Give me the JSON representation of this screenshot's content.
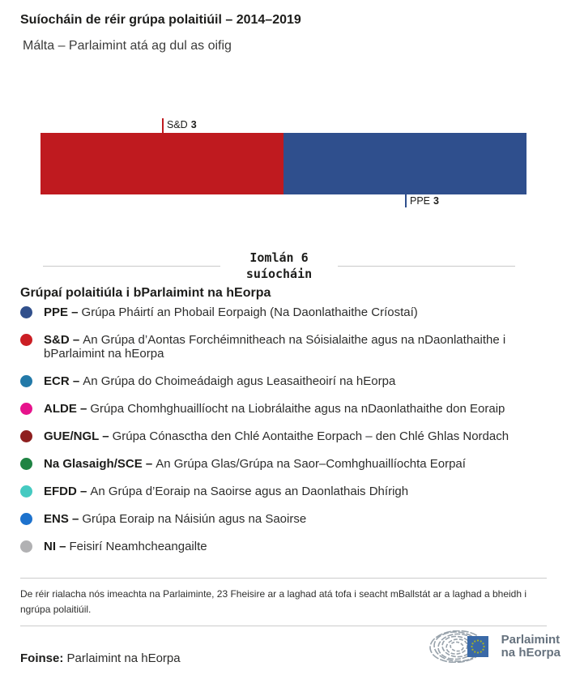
{
  "header": {
    "title": "Suíocháin de réir grúpa polaitiúil – 2014–2019",
    "subtitle": "Málta – Parlaimint atá ag dul as oifig"
  },
  "chart_data": {
    "type": "bar",
    "orientation": "horizontal",
    "stacked": true,
    "title": "Suíocháin de réir grúpa polaitiúil – 2014–2019",
    "subtitle": "Málta – Parlaimint atá ag dul as oifig",
    "total_seats": 6,
    "total_line1": "Iomlán 6",
    "total_line2": "suíocháin",
    "segments": [
      {
        "group": "S&D",
        "seats": 3,
        "color": "#bf1a1f",
        "label_position": "above"
      },
      {
        "group": "PPE",
        "seats": 3,
        "color": "#2f4f8d",
        "label_position": "below"
      }
    ]
  },
  "legend": {
    "title": "Grúpaí polaitiúla i bParlaimint na hEorpa",
    "items": [
      {
        "code": "PPE –",
        "desc": "Grúpa Pháirtí an Phobail Eorpaigh (Na Daonlathaithe Críostaí)",
        "color": "#31508c"
      },
      {
        "code": "S&D –",
        "desc": "An Grúpa d’Aontas Forchéimnitheach na Sóisialaithe agus na nDaonlathaithe i bParlaimint na hEorpa",
        "color": "#cb1e24"
      },
      {
        "code": "ECR –",
        "desc": "An Grúpa do Choimeádaigh agus Leasaitheoirí na hEorpa",
        "color": "#2279a8"
      },
      {
        "code": "ALDE –",
        "desc": "Grúpa Chomhghuaillíocht na Liobrálaithe agus na nDaonlathaithe don Eoraip",
        "color": "#e6138c"
      },
      {
        "code": "GUE/NGL –",
        "desc": "Grúpa Cónasctha den Chlé Aontaithe Eorpach – den Chlé Ghlas Nordach",
        "color": "#8e1f1f"
      },
      {
        "code": "Na Glasaigh/SCE –",
        "desc": "An Grúpa Glas/Grúpa na Saor–Comhghuaillíochta Eorpaí",
        "color": "#1f8343"
      },
      {
        "code": "EFDD –",
        "desc": "An Grúpa d’Eoraip na Saoirse agus an Daonlathais Dhírigh",
        "color": "#45cac1"
      },
      {
        "code": "ENS –",
        "desc": "Grúpa Eoraip na Náisiún agus na Saoirse",
        "color": "#1d72cd"
      },
      {
        "code": "NI –",
        "desc": "Feisirí Neamhcheangailte",
        "color": "#b1b1b3"
      }
    ]
  },
  "note": "De réir rialacha nós imeachta na Parlaiminte, 23 Fheisire ar a laghad atá tofa i seacht mBallstát ar a laghad a bheidh i ngrúpa polaitiúil.",
  "footer": {
    "source_label": "Foinse:",
    "source_value": "Parlaimint na hEorpa",
    "logo_line1": "Parlaimint",
    "logo_line2": "na hEorpa"
  }
}
